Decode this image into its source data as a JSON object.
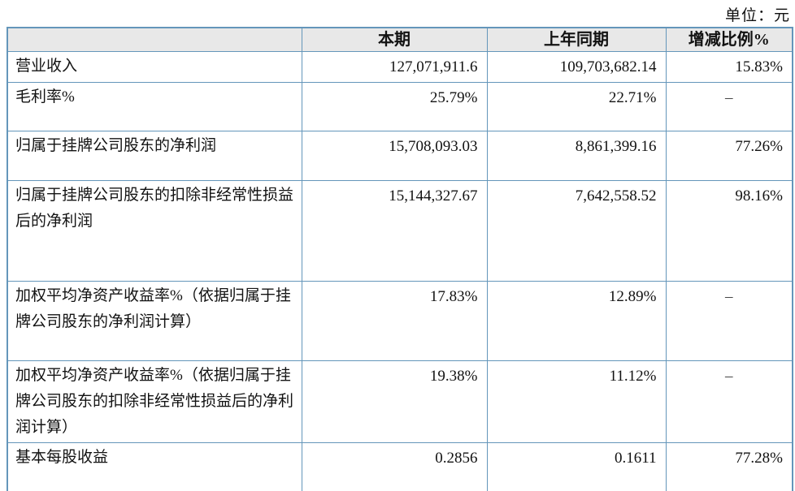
{
  "unit_label": "单位：元",
  "colors": {
    "table_border": "#6496ba",
    "header_background": "#e8e8e8",
    "text": "#121212"
  },
  "table": {
    "headers": {
      "metric": "",
      "current": "本期",
      "prior": "上年同期",
      "change": "增减比例%"
    },
    "rows": [
      {
        "label": "营业收入",
        "current": "127,071,911.6",
        "prior": "109,703,682.14",
        "change": "15.83%"
      },
      {
        "label": "毛利率%",
        "current": "25.79%",
        "prior": "22.71%",
        "change": "–"
      },
      {
        "label": "归属于挂牌公司股东的净利润",
        "current": "15,708,093.03",
        "prior": "8,861,399.16",
        "change": "77.26%"
      },
      {
        "label": "归属于挂牌公司股东的扣除非经常性损益后的净利润",
        "current": "15,144,327.67",
        "prior": "7,642,558.52",
        "change": "98.16%"
      },
      {
        "label": "加权平均净资产收益率%（依据归属于挂牌公司股东的净利润计算）",
        "current": "17.83%",
        "prior": "12.89%",
        "change": "–"
      },
      {
        "label": "加权平均净资产收益率%（依据归属于挂牌公司股东的扣除非经常性损益后的净利润计算）",
        "current": "19.38%",
        "prior": "11.12%",
        "change": "–"
      },
      {
        "label": "基本每股收益",
        "current": "0.2856",
        "prior": "0.1611",
        "change": "77.28%"
      }
    ]
  }
}
